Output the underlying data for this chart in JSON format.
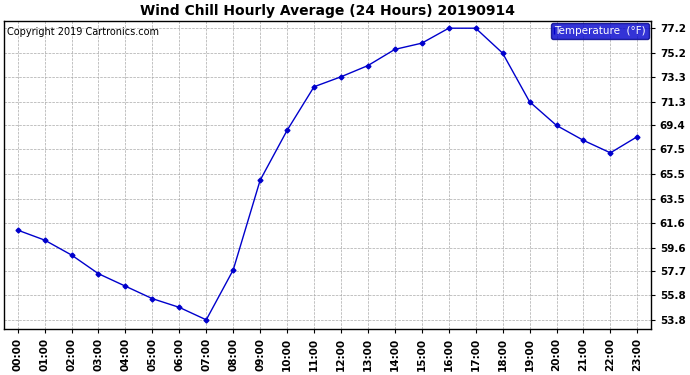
{
  "title": "Wind Chill Hourly Average (24 Hours) 20190914",
  "copyright": "Copyright 2019 Cartronics.com",
  "legend_label": "Temperature  (°F)",
  "hours": [
    0,
    1,
    2,
    3,
    4,
    5,
    6,
    7,
    8,
    9,
    10,
    11,
    12,
    13,
    14,
    15,
    16,
    17,
    18,
    19,
    20,
    21,
    22,
    23
  ],
  "values": [
    61.0,
    60.2,
    59.0,
    57.5,
    56.5,
    55.5,
    54.8,
    53.8,
    57.8,
    65.0,
    69.0,
    72.5,
    73.3,
    74.2,
    75.5,
    76.0,
    77.2,
    77.2,
    75.2,
    71.3,
    69.4,
    68.2,
    67.2,
    68.5
  ],
  "ylim": [
    53.1,
    77.8
  ],
  "yticks": [
    53.8,
    55.8,
    57.7,
    59.6,
    61.6,
    63.5,
    65.5,
    67.5,
    69.4,
    71.3,
    73.3,
    75.2,
    77.2
  ],
  "line_color": "#0000cc",
  "marker": "D",
  "marker_size": 2.5,
  "bg_color": "#ffffff",
  "grid_color": "#aaaaaa",
  "legend_bg": "#0000cc",
  "legend_fg": "#ffffff",
  "title_fontsize": 10,
  "tick_fontsize": 7.5,
  "copyright_fontsize": 7
}
